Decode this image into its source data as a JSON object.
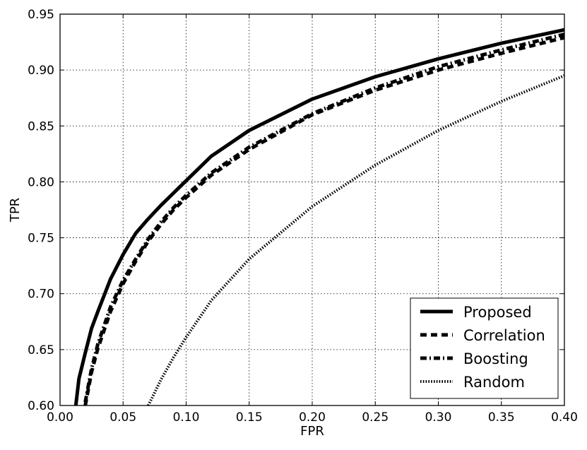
{
  "chart_data": {
    "type": "line",
    "title": "",
    "xlabel": "FPR",
    "ylabel": "TPR",
    "xlim": [
      0.0,
      0.4
    ],
    "ylim": [
      0.6,
      0.95
    ],
    "xticks": [
      "0.00",
      "0.05",
      "0.10",
      "0.15",
      "0.20",
      "0.25",
      "0.30",
      "0.35",
      "0.40"
    ],
    "yticks": [
      "0.60",
      "0.65",
      "0.70",
      "0.75",
      "0.80",
      "0.85",
      "0.90",
      "0.95"
    ],
    "grid": true,
    "legend_position": "bottom-right",
    "series": [
      {
        "name": "Proposed",
        "style": "solid",
        "x": [
          0.0125,
          0.015,
          0.02,
          0.025,
          0.03,
          0.04,
          0.05,
          0.06,
          0.07,
          0.08,
          0.09,
          0.1,
          0.12,
          0.15,
          0.2,
          0.25,
          0.3,
          0.35,
          0.4
        ],
        "y": [
          0.6,
          0.624,
          0.647,
          0.669,
          0.684,
          0.713,
          0.735,
          0.754,
          0.767,
          0.779,
          0.79,
          0.801,
          0.823,
          0.846,
          0.874,
          0.894,
          0.91,
          0.924,
          0.936
        ]
      },
      {
        "name": "Correlation",
        "style": "dashed",
        "x": [
          0.02,
          0.025,
          0.03,
          0.04,
          0.05,
          0.06,
          0.07,
          0.08,
          0.09,
          0.1,
          0.12,
          0.15,
          0.2,
          0.25,
          0.3,
          0.35,
          0.4
        ],
        "y": [
          0.6,
          0.63,
          0.651,
          0.684,
          0.709,
          0.729,
          0.747,
          0.762,
          0.775,
          0.786,
          0.806,
          0.829,
          0.86,
          0.882,
          0.9,
          0.915,
          0.929
        ]
      },
      {
        "name": "Boosting",
        "style": "dashdot",
        "x": [
          0.02,
          0.025,
          0.03,
          0.04,
          0.05,
          0.06,
          0.07,
          0.08,
          0.09,
          0.1,
          0.12,
          0.15,
          0.2,
          0.25,
          0.3,
          0.35,
          0.4
        ],
        "y": [
          0.603,
          0.633,
          0.655,
          0.688,
          0.712,
          0.731,
          0.749,
          0.764,
          0.777,
          0.788,
          0.808,
          0.831,
          0.861,
          0.884,
          0.903,
          0.918,
          0.932
        ]
      },
      {
        "name": "Random",
        "style": "dotted",
        "x": [
          0.07,
          0.08,
          0.09,
          0.1,
          0.12,
          0.15,
          0.2,
          0.25,
          0.3,
          0.35,
          0.4
        ],
        "y": [
          0.6,
          0.623,
          0.643,
          0.661,
          0.694,
          0.731,
          0.778,
          0.815,
          0.846,
          0.872,
          0.895
        ]
      }
    ]
  }
}
